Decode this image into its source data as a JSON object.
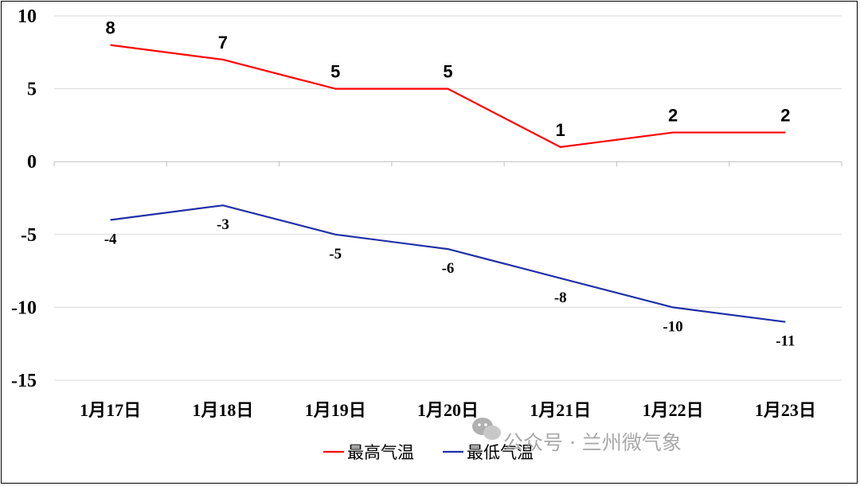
{
  "chart_data": {
    "type": "line",
    "categories": [
      "1月17日",
      "1月18日",
      "1月19日",
      "1月20日",
      "1月21日",
      "1月22日",
      "1月23日"
    ],
    "series": [
      {
        "name": "最高气温",
        "values": [
          8,
          7,
          5,
          5,
          1,
          2,
          2
        ],
        "color": "#ff0000"
      },
      {
        "name": "最低气温",
        "values": [
          -4,
          -3,
          -5,
          -6,
          -8,
          -10,
          -11
        ],
        "color": "#1f2fa8"
      }
    ],
    "ylim": [
      -15,
      10
    ],
    "yticks": [
      10,
      5,
      0,
      -5,
      -10,
      -15
    ],
    "grid": true,
    "legend": "bottom",
    "xlabel": "",
    "ylabel": ""
  },
  "watermark": {
    "text": "公众号 · 兰州微气象",
    "icon": "wechat-icon"
  }
}
